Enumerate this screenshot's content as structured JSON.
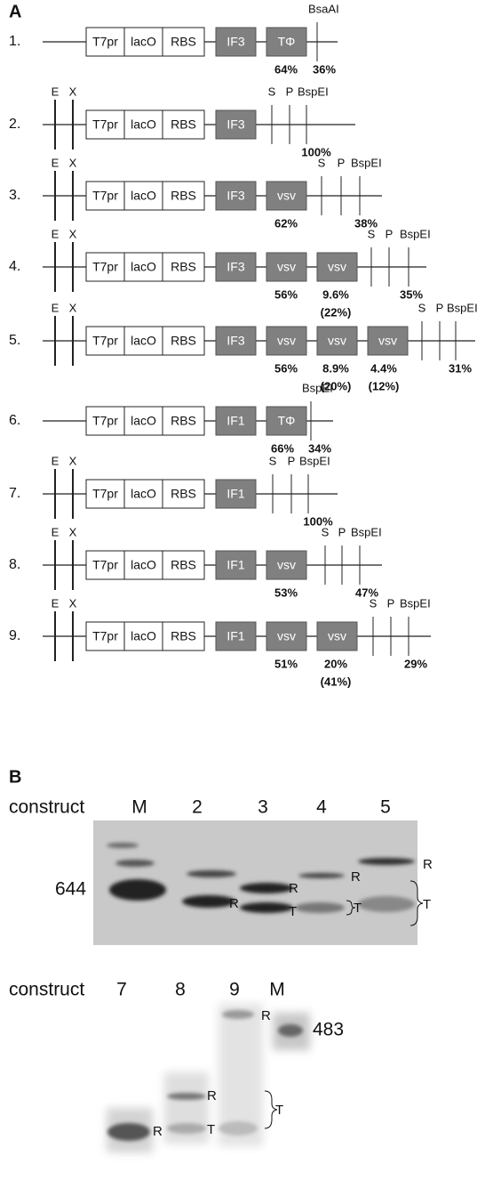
{
  "panel_a": {
    "label": "A",
    "constructs": [
      {
        "number": "1.",
        "boxes": [
          "T7pr",
          "lacO",
          "RBS",
          "IF3",
          "TΦ"
        ],
        "sites": [
          "BsaAI"
        ],
        "percents": [
          {
            "value": "64%"
          },
          {
            "value": "36%"
          }
        ]
      },
      {
        "number": "2.",
        "boxes": [
          "T7pr",
          "lacO",
          "RBS",
          "IF3"
        ],
        "sites": [
          "E",
          "X",
          "S",
          "P",
          "BspEI"
        ],
        "percents": [
          {
            "value": "100%"
          }
        ]
      },
      {
        "number": "3.",
        "boxes": [
          "T7pr",
          "lacO",
          "RBS",
          "IF3",
          "vsv"
        ],
        "sites": [
          "E",
          "X",
          "S",
          "P",
          "BspEI"
        ],
        "percents": [
          {
            "value": "62%"
          },
          {
            "value": "38%"
          }
        ]
      },
      {
        "number": "4.",
        "boxes": [
          "T7pr",
          "lacO",
          "RBS",
          "IF3",
          "vsv",
          "vsv"
        ],
        "sites": [
          "E",
          "X",
          "S",
          "P",
          "BspEI"
        ],
        "percents": [
          {
            "value": "56%"
          },
          {
            "value": "9.6%",
            "note": "(22%)"
          },
          {
            "value": "35%"
          }
        ]
      },
      {
        "number": "5.",
        "boxes": [
          "T7pr",
          "lacO",
          "RBS",
          "IF3",
          "vsv",
          "vsv",
          "vsv"
        ],
        "sites": [
          "E",
          "X",
          "S",
          "P",
          "BspEI"
        ],
        "percents": [
          {
            "value": "56%"
          },
          {
            "value": "8.9%",
            "note": "(20%)"
          },
          {
            "value": "4.4%",
            "note": "(12%)"
          },
          {
            "value": "31%"
          }
        ]
      },
      {
        "number": "6.",
        "boxes": [
          "T7pr",
          "lacO",
          "RBS",
          "IF1",
          "TΦ"
        ],
        "sites": [
          "BspEI"
        ],
        "percents": [
          {
            "value": "66%"
          },
          {
            "value": "34%"
          }
        ]
      },
      {
        "number": "7.",
        "boxes": [
          "T7pr",
          "lacO",
          "RBS",
          "IF1"
        ],
        "sites": [
          "E",
          "X",
          "S",
          "P",
          "BspEI"
        ],
        "percents": [
          {
            "value": "100%"
          }
        ]
      },
      {
        "number": "8.",
        "boxes": [
          "T7pr",
          "lacO",
          "RBS",
          "IF1",
          "vsv"
        ],
        "sites": [
          "E",
          "X",
          "S",
          "P",
          "BspEI"
        ],
        "percents": [
          {
            "value": "53%"
          },
          {
            "value": "47%"
          }
        ]
      },
      {
        "number": "9.",
        "boxes": [
          "T7pr",
          "lacO",
          "RBS",
          "IF1",
          "vsv",
          "vsv"
        ],
        "sites": [
          "E",
          "X",
          "S",
          "P",
          "BspEI"
        ],
        "percents": [
          {
            "value": "51%"
          },
          {
            "value": "20%",
            "note": "(41%)"
          },
          {
            "value": "29%"
          }
        ]
      }
    ]
  },
  "panel_b": {
    "label": "B",
    "gel1": {
      "heading": "construct",
      "lanes": [
        "M",
        "2",
        "3",
        "4",
        "5"
      ],
      "marker": "644",
      "labels": [
        "R",
        "R",
        "T",
        "R",
        "T",
        "R",
        "T"
      ]
    },
    "gel2": {
      "heading": "construct",
      "lanes": [
        "7",
        "8",
        "9",
        "M"
      ],
      "marker": "483",
      "labels": [
        "R",
        "R",
        "T",
        "R",
        "T"
      ]
    }
  }
}
